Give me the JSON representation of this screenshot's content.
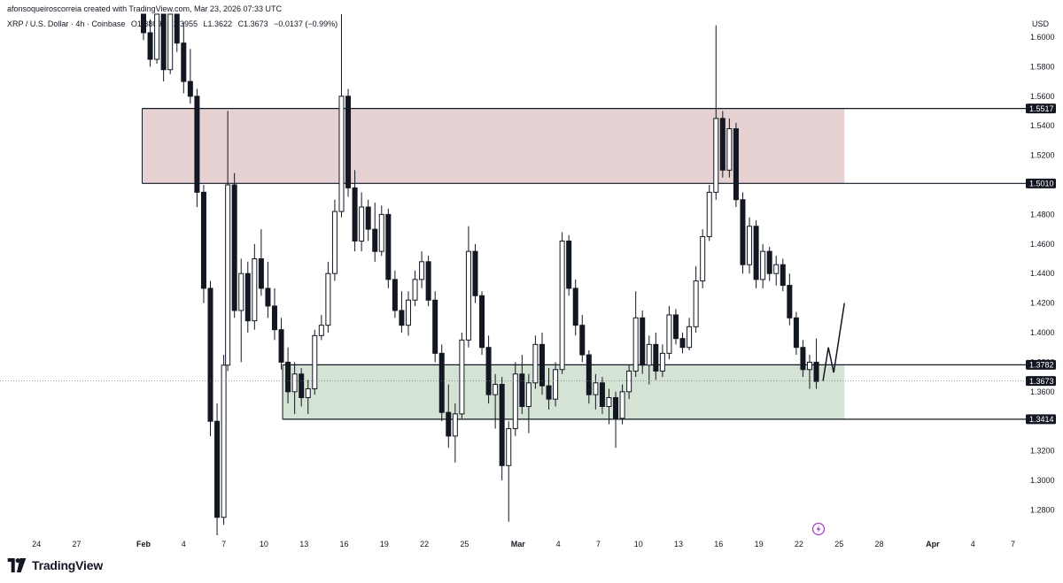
{
  "header": {
    "author_line": "afonsoqueiroscorreia created with TradingView.com, Mar 23, 2026 07:33 UTC",
    "symbol": "XRP / U.S. Dollar · 4h · Coinbase",
    "open": "O1.3809",
    "high": "H1.3955",
    "low": "L1.3622",
    "close": "C1.3673",
    "change": "−0.0137 (−0.99%)"
  },
  "brand": {
    "name": "TradingView"
  },
  "colors": {
    "resistance_zone": "#e6d1d3",
    "support_zone": "#d4e3d4",
    "candle": "#131722",
    "label_bg": "#131722"
  },
  "chart_data": {
    "type": "candlestick",
    "currency": "USD",
    "ylim": [
      1.27,
      1.62
    ],
    "y_ticks": [
      "1.6000",
      "1.5800",
      "1.5600",
      "1.5400",
      "1.5200",
      "1.5000",
      "1.4800",
      "1.4600",
      "1.4400",
      "1.4200",
      "1.4000",
      "1.3800",
      "1.3600",
      "1.3400",
      "1.3200",
      "1.3000",
      "1.2800"
    ],
    "x_ticks": [
      {
        "label": "24",
        "day": -8
      },
      {
        "label": "27",
        "day": -5
      },
      {
        "label": "Feb",
        "day": 0
      },
      {
        "label": "4",
        "day": 3
      },
      {
        "label": "7",
        "day": 6
      },
      {
        "label": "10",
        "day": 9
      },
      {
        "label": "13",
        "day": 12
      },
      {
        "label": "16",
        "day": 15
      },
      {
        "label": "19",
        "day": 18
      },
      {
        "label": "22",
        "day": 21
      },
      {
        "label": "25",
        "day": 24
      },
      {
        "label": "Mar",
        "day": 28
      },
      {
        "label": "4",
        "day": 31
      },
      {
        "label": "7",
        "day": 34
      },
      {
        "label": "10",
        "day": 37
      },
      {
        "label": "13",
        "day": 40
      },
      {
        "label": "16",
        "day": 43
      },
      {
        "label": "19",
        "day": 46
      },
      {
        "label": "22",
        "day": 49
      },
      {
        "label": "25",
        "day": 52
      },
      {
        "label": "28",
        "day": 55
      },
      {
        "label": "Apr",
        "day": 59
      },
      {
        "label": "4",
        "day": 62
      },
      {
        "label": "7",
        "day": 65
      }
    ],
    "zones": [
      {
        "type": "resistance",
        "from": 1.501,
        "to": 1.5517,
        "x_start": -0.1,
        "x_end": 52.4
      },
      {
        "type": "support",
        "from": 1.3414,
        "to": 1.3782,
        "x_start": 10.4,
        "x_end": 52.4
      }
    ],
    "price_labels": [
      "1.5517",
      "1.5010",
      "1.3782",
      "1.3673",
      "1.3414"
    ],
    "current_price": 1.3673,
    "projection": [
      [
        50.8,
        1.3673
      ],
      [
        51.2,
        1.39
      ],
      [
        51.6,
        1.373
      ],
      [
        52.4,
        1.42
      ]
    ],
    "series": [
      {
        "day": 0.0,
        "o": 1.64,
        "h": 1.65,
        "l": 1.598,
        "c": 1.603
      },
      {
        "day": 0.5,
        "o": 1.603,
        "h": 1.612,
        "l": 1.58,
        "c": 1.585
      },
      {
        "day": 1.0,
        "o": 1.585,
        "h": 1.625,
        "l": 1.582,
        "c": 1.618
      },
      {
        "day": 1.5,
        "o": 1.618,
        "h": 1.63,
        "l": 1.57,
        "c": 1.578
      },
      {
        "day": 2.0,
        "o": 1.578,
        "h": 1.64,
        "l": 1.575,
        "c": 1.628
      },
      {
        "day": 2.5,
        "o": 1.628,
        "h": 1.638,
        "l": 1.59,
        "c": 1.596
      },
      {
        "day": 3.0,
        "o": 1.596,
        "h": 1.61,
        "l": 1.562,
        "c": 1.57
      },
      {
        "day": 3.5,
        "o": 1.57,
        "h": 1.592,
        "l": 1.555,
        "c": 1.56
      },
      {
        "day": 4.0,
        "o": 1.56,
        "h": 1.565,
        "l": 1.485,
        "c": 1.495
      },
      {
        "day": 4.5,
        "o": 1.495,
        "h": 1.5,
        "l": 1.42,
        "c": 1.43
      },
      {
        "day": 5.0,
        "o": 1.43,
        "h": 1.435,
        "l": 1.33,
        "c": 1.34
      },
      {
        "day": 5.5,
        "o": 1.34,
        "h": 1.352,
        "l": 1.262,
        "c": 1.275
      },
      {
        "day": 6.0,
        "o": 1.275,
        "h": 1.385,
        "l": 1.27,
        "c": 1.378
      },
      {
        "day": 6.3,
        "o": 1.378,
        "h": 1.55,
        "l": 1.374,
        "c": 1.5
      },
      {
        "day": 6.8,
        "o": 1.5,
        "h": 1.508,
        "l": 1.41,
        "c": 1.415
      },
      {
        "day": 7.3,
        "o": 1.415,
        "h": 1.45,
        "l": 1.38,
        "c": 1.44
      },
      {
        "day": 7.8,
        "o": 1.44,
        "h": 1.448,
        "l": 1.4,
        "c": 1.408
      },
      {
        "day": 8.3,
        "o": 1.408,
        "h": 1.46,
        "l": 1.402,
        "c": 1.45
      },
      {
        "day": 8.8,
        "o": 1.45,
        "h": 1.47,
        "l": 1.425,
        "c": 1.43
      },
      {
        "day": 9.3,
        "o": 1.43,
        "h": 1.448,
        "l": 1.41,
        "c": 1.418
      },
      {
        "day": 9.8,
        "o": 1.418,
        "h": 1.43,
        "l": 1.395,
        "c": 1.402
      },
      {
        "day": 10.3,
        "o": 1.402,
        "h": 1.41,
        "l": 1.375,
        "c": 1.38
      },
      {
        "day": 10.8,
        "o": 1.38,
        "h": 1.39,
        "l": 1.352,
        "c": 1.36
      },
      {
        "day": 11.3,
        "o": 1.36,
        "h": 1.38,
        "l": 1.345,
        "c": 1.372
      },
      {
        "day": 11.8,
        "o": 1.372,
        "h": 1.376,
        "l": 1.35,
        "c": 1.356
      },
      {
        "day": 12.3,
        "o": 1.356,
        "h": 1.368,
        "l": 1.345,
        "c": 1.362
      },
      {
        "day": 12.8,
        "o": 1.362,
        "h": 1.402,
        "l": 1.358,
        "c": 1.398
      },
      {
        "day": 13.3,
        "o": 1.398,
        "h": 1.412,
        "l": 1.395,
        "c": 1.405
      },
      {
        "day": 13.8,
        "o": 1.405,
        "h": 1.448,
        "l": 1.4,
        "c": 1.44
      },
      {
        "day": 14.3,
        "o": 1.44,
        "h": 1.49,
        "l": 1.435,
        "c": 1.482
      },
      {
        "day": 14.8,
        "o": 1.482,
        "h": 1.64,
        "l": 1.478,
        "c": 1.56
      },
      {
        "day": 15.3,
        "o": 1.56,
        "h": 1.565,
        "l": 1.492,
        "c": 1.498
      },
      {
        "day": 15.8,
        "o": 1.498,
        "h": 1.51,
        "l": 1.455,
        "c": 1.462
      },
      {
        "day": 16.3,
        "o": 1.462,
        "h": 1.495,
        "l": 1.455,
        "c": 1.485
      },
      {
        "day": 16.8,
        "o": 1.485,
        "h": 1.49,
        "l": 1.462,
        "c": 1.47
      },
      {
        "day": 17.3,
        "o": 1.47,
        "h": 1.488,
        "l": 1.448,
        "c": 1.455
      },
      {
        "day": 17.8,
        "o": 1.455,
        "h": 1.486,
        "l": 1.452,
        "c": 1.48
      },
      {
        "day": 18.3,
        "o": 1.48,
        "h": 1.484,
        "l": 1.43,
        "c": 1.436
      },
      {
        "day": 18.8,
        "o": 1.436,
        "h": 1.442,
        "l": 1.41,
        "c": 1.415
      },
      {
        "day": 19.3,
        "o": 1.415,
        "h": 1.428,
        "l": 1.4,
        "c": 1.405
      },
      {
        "day": 19.8,
        "o": 1.405,
        "h": 1.428,
        "l": 1.398,
        "c": 1.422
      },
      {
        "day": 20.3,
        "o": 1.422,
        "h": 1.442,
        "l": 1.418,
        "c": 1.436
      },
      {
        "day": 20.8,
        "o": 1.436,
        "h": 1.455,
        "l": 1.43,
        "c": 1.448
      },
      {
        "day": 21.3,
        "o": 1.448,
        "h": 1.452,
        "l": 1.418,
        "c": 1.422
      },
      {
        "day": 21.8,
        "o": 1.422,
        "h": 1.428,
        "l": 1.38,
        "c": 1.386
      },
      {
        "day": 22.3,
        "o": 1.386,
        "h": 1.392,
        "l": 1.34,
        "c": 1.346
      },
      {
        "day": 22.8,
        "o": 1.346,
        "h": 1.365,
        "l": 1.322,
        "c": 1.33
      },
      {
        "day": 23.3,
        "o": 1.33,
        "h": 1.352,
        "l": 1.312,
        "c": 1.345
      },
      {
        "day": 23.8,
        "o": 1.345,
        "h": 1.4,
        "l": 1.342,
        "c": 1.395
      },
      {
        "day": 24.3,
        "o": 1.395,
        "h": 1.472,
        "l": 1.39,
        "c": 1.455
      },
      {
        "day": 24.8,
        "o": 1.455,
        "h": 1.46,
        "l": 1.42,
        "c": 1.425
      },
      {
        "day": 25.3,
        "o": 1.425,
        "h": 1.428,
        "l": 1.385,
        "c": 1.39
      },
      {
        "day": 25.8,
        "o": 1.39,
        "h": 1.398,
        "l": 1.352,
        "c": 1.358
      },
      {
        "day": 26.3,
        "o": 1.358,
        "h": 1.372,
        "l": 1.335,
        "c": 1.365
      },
      {
        "day": 26.8,
        "o": 1.365,
        "h": 1.37,
        "l": 1.3,
        "c": 1.31
      },
      {
        "day": 27.3,
        "o": 1.31,
        "h": 1.34,
        "l": 1.272,
        "c": 1.335
      },
      {
        "day": 27.8,
        "o": 1.335,
        "h": 1.38,
        "l": 1.33,
        "c": 1.372
      },
      {
        "day": 28.3,
        "o": 1.372,
        "h": 1.385,
        "l": 1.345,
        "c": 1.35
      },
      {
        "day": 28.8,
        "o": 1.35,
        "h": 1.372,
        "l": 1.332,
        "c": 1.366
      },
      {
        "day": 29.3,
        "o": 1.366,
        "h": 1.398,
        "l": 1.362,
        "c": 1.392
      },
      {
        "day": 29.8,
        "o": 1.392,
        "h": 1.4,
        "l": 1.358,
        "c": 1.364
      },
      {
        "day": 30.3,
        "o": 1.364,
        "h": 1.376,
        "l": 1.348,
        "c": 1.355
      },
      {
        "day": 30.8,
        "o": 1.355,
        "h": 1.38,
        "l": 1.35,
        "c": 1.375
      },
      {
        "day": 31.3,
        "o": 1.375,
        "h": 1.468,
        "l": 1.372,
        "c": 1.462
      },
      {
        "day": 31.8,
        "o": 1.462,
        "h": 1.466,
        "l": 1.425,
        "c": 1.43
      },
      {
        "day": 32.3,
        "o": 1.43,
        "h": 1.436,
        "l": 1.398,
        "c": 1.405
      },
      {
        "day": 32.8,
        "o": 1.405,
        "h": 1.412,
        "l": 1.38,
        "c": 1.385
      },
      {
        "day": 33.3,
        "o": 1.385,
        "h": 1.388,
        "l": 1.352,
        "c": 1.358
      },
      {
        "day": 33.8,
        "o": 1.358,
        "h": 1.372,
        "l": 1.348,
        "c": 1.366
      },
      {
        "day": 34.3,
        "o": 1.366,
        "h": 1.37,
        "l": 1.345,
        "c": 1.35
      },
      {
        "day": 34.8,
        "o": 1.35,
        "h": 1.362,
        "l": 1.338,
        "c": 1.356
      },
      {
        "day": 35.3,
        "o": 1.356,
        "h": 1.36,
        "l": 1.322,
        "c": 1.342
      },
      {
        "day": 35.8,
        "o": 1.342,
        "h": 1.365,
        "l": 1.338,
        "c": 1.36
      },
      {
        "day": 36.3,
        "o": 1.36,
        "h": 1.378,
        "l": 1.355,
        "c": 1.374
      },
      {
        "day": 36.8,
        "o": 1.374,
        "h": 1.428,
        "l": 1.37,
        "c": 1.41
      },
      {
        "day": 37.3,
        "o": 1.41,
        "h": 1.415,
        "l": 1.372,
        "c": 1.378
      },
      {
        "day": 37.8,
        "o": 1.378,
        "h": 1.398,
        "l": 1.365,
        "c": 1.392
      },
      {
        "day": 38.3,
        "o": 1.392,
        "h": 1.4,
        "l": 1.368,
        "c": 1.374
      },
      {
        "day": 38.8,
        "o": 1.374,
        "h": 1.392,
        "l": 1.37,
        "c": 1.386
      },
      {
        "day": 39.3,
        "o": 1.386,
        "h": 1.418,
        "l": 1.382,
        "c": 1.412
      },
      {
        "day": 39.8,
        "o": 1.412,
        "h": 1.416,
        "l": 1.392,
        "c": 1.396
      },
      {
        "day": 40.3,
        "o": 1.396,
        "h": 1.4,
        "l": 1.386,
        "c": 1.39
      },
      {
        "day": 40.8,
        "o": 1.39,
        "h": 1.41,
        "l": 1.388,
        "c": 1.404
      },
      {
        "day": 41.3,
        "o": 1.404,
        "h": 1.445,
        "l": 1.4,
        "c": 1.435
      },
      {
        "day": 41.8,
        "o": 1.435,
        "h": 1.47,
        "l": 1.43,
        "c": 1.465
      },
      {
        "day": 42.3,
        "o": 1.465,
        "h": 1.5,
        "l": 1.462,
        "c": 1.495
      },
      {
        "day": 42.8,
        "o": 1.495,
        "h": 1.608,
        "l": 1.49,
        "c": 1.545
      },
      {
        "day": 43.3,
        "o": 1.545,
        "h": 1.55,
        "l": 1.505,
        "c": 1.51
      },
      {
        "day": 43.8,
        "o": 1.51,
        "h": 1.545,
        "l": 1.505,
        "c": 1.538
      },
      {
        "day": 44.3,
        "o": 1.538,
        "h": 1.542,
        "l": 1.485,
        "c": 1.49
      },
      {
        "day": 44.8,
        "o": 1.49,
        "h": 1.495,
        "l": 1.44,
        "c": 1.446
      },
      {
        "day": 45.3,
        "o": 1.446,
        "h": 1.478,
        "l": 1.44,
        "c": 1.472
      },
      {
        "day": 45.8,
        "o": 1.472,
        "h": 1.476,
        "l": 1.43,
        "c": 1.436
      },
      {
        "day": 46.3,
        "o": 1.436,
        "h": 1.46,
        "l": 1.43,
        "c": 1.455
      },
      {
        "day": 46.8,
        "o": 1.455,
        "h": 1.458,
        "l": 1.435,
        "c": 1.44
      },
      {
        "day": 47.3,
        "o": 1.44,
        "h": 1.452,
        "l": 1.432,
        "c": 1.446
      },
      {
        "day": 47.8,
        "o": 1.446,
        "h": 1.45,
        "l": 1.428,
        "c": 1.432
      },
      {
        "day": 48.3,
        "o": 1.432,
        "h": 1.44,
        "l": 1.405,
        "c": 1.41
      },
      {
        "day": 48.8,
        "o": 1.41,
        "h": 1.414,
        "l": 1.385,
        "c": 1.39
      },
      {
        "day": 49.3,
        "o": 1.39,
        "h": 1.395,
        "l": 1.37,
        "c": 1.375
      },
      {
        "day": 49.8,
        "o": 1.375,
        "h": 1.385,
        "l": 1.362,
        "c": 1.38
      },
      {
        "day": 50.3,
        "o": 1.38,
        "h": 1.396,
        "l": 1.362,
        "c": 1.367
      }
    ]
  }
}
